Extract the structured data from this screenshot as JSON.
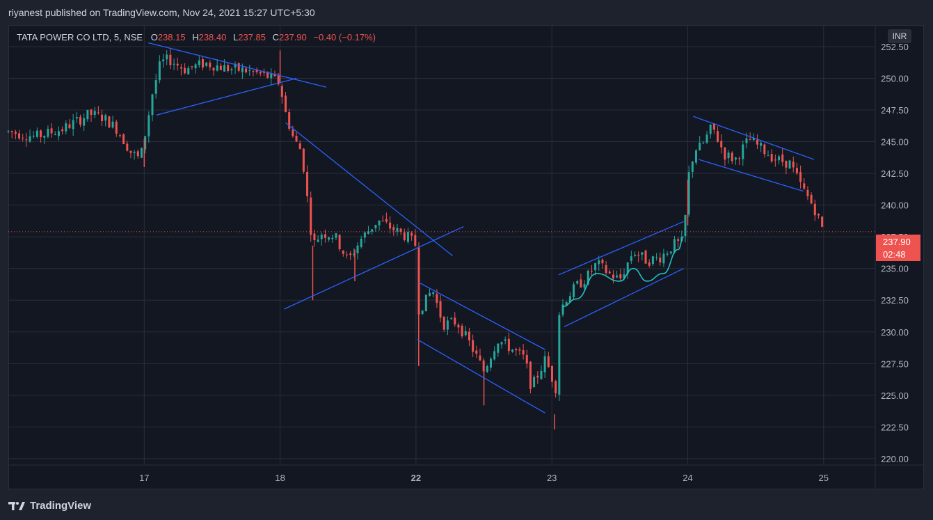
{
  "header": {
    "publisher_line": "riyanest published on TradingView.com, Nov 24, 2021 15:27 UTC+5:30"
  },
  "symbol": {
    "name": "TATA POWER CO LTD, 5, NSE",
    "o_label": "O",
    "o_value": "238.15",
    "h_label": "H",
    "h_value": "238.40",
    "l_label": "L",
    "l_value": "237.85",
    "c_label": "C",
    "c_value": "237.90",
    "change": "−0.40 (−0.17%)"
  },
  "price_scale": {
    "currency": "INR"
  },
  "last_price": {
    "value": "237.90",
    "countdown": "02:48"
  },
  "footer": {
    "brand": "TradingView"
  },
  "colors": {
    "background": "#131722",
    "up": "#26a69a",
    "down": "#ef5350",
    "trendline": "#2962ff",
    "curve": "#22c1c3",
    "grid": "#2a2e39",
    "text": "#b2b5be"
  },
  "chart_data": {
    "type": "candlestick",
    "title": "TATA POWER CO LTD, 5, NSE",
    "x_tick_labels": [
      "17",
      "18",
      "22",
      "23",
      "24",
      "25"
    ],
    "y_ticks": [
      220.0,
      222.5,
      225.0,
      227.5,
      230.0,
      232.5,
      235.0,
      237.5,
      240.0,
      242.5,
      245.0,
      247.5,
      250.0,
      252.5
    ],
    "ylim": [
      219.5,
      254.2
    ],
    "last_price": 237.9,
    "grid": true,
    "close_path": [
      [
        16.0,
        245.8
      ],
      [
        16.2,
        245.4
      ],
      [
        16.4,
        246.0
      ],
      [
        16.6,
        247.2
      ],
      [
        16.7,
        246.9
      ],
      [
        16.8,
        246.0
      ],
      [
        16.9,
        244.2
      ],
      [
        16.97,
        243.6
      ],
      [
        17.0,
        245.2
      ],
      [
        17.06,
        248.8
      ],
      [
        17.12,
        251.2
      ],
      [
        17.18,
        251.5
      ],
      [
        17.3,
        250.7
      ],
      [
        17.45,
        251.2
      ],
      [
        17.6,
        250.8
      ],
      [
        17.75,
        250.6
      ],
      [
        17.9,
        250.2
      ],
      [
        18.0,
        249.6
      ],
      [
        18.03,
        247.6
      ],
      [
        18.1,
        245.2
      ],
      [
        18.16,
        244.2
      ],
      [
        18.2,
        240.5
      ],
      [
        18.24,
        236.8
      ],
      [
        18.3,
        237.8
      ],
      [
        18.4,
        237.6
      ],
      [
        18.5,
        235.6
      ],
      [
        18.6,
        237.4
      ],
      [
        18.72,
        238.8
      ],
      [
        18.85,
        238.0
      ],
      [
        18.95,
        237.4
      ],
      [
        19.0,
        236.8
      ],
      [
        19.02,
        231.8
      ],
      [
        19.07,
        232.4
      ],
      [
        19.12,
        233.4
      ],
      [
        19.2,
        230.6
      ],
      [
        19.3,
        230.8
      ],
      [
        19.4,
        229.0
      ],
      [
        19.5,
        226.9
      ],
      [
        19.6,
        229.4
      ],
      [
        19.7,
        228.7
      ],
      [
        19.8,
        227.9
      ],
      [
        19.85,
        225.6
      ],
      [
        19.95,
        227.8
      ],
      [
        20.0,
        226.6
      ],
      [
        20.02,
        223.5
      ],
      [
        20.05,
        231.4
      ],
      [
        20.1,
        232.6
      ],
      [
        20.18,
        233.6
      ],
      [
        20.25,
        234.2
      ],
      [
        20.33,
        235.4
      ],
      [
        20.42,
        234.6
      ],
      [
        20.5,
        234.1
      ],
      [
        20.6,
        236.4
      ],
      [
        20.7,
        235.6
      ],
      [
        20.8,
        235.9
      ],
      [
        20.9,
        236.9
      ],
      [
        20.97,
        237.1
      ],
      [
        21.0,
        242.0
      ],
      [
        21.05,
        244.4
      ],
      [
        21.1,
        244.6
      ],
      [
        21.18,
        246.2
      ],
      [
        21.27,
        244.0
      ],
      [
        21.35,
        243.6
      ],
      [
        21.45,
        245.2
      ],
      [
        21.55,
        244.4
      ],
      [
        21.65,
        243.6
      ],
      [
        21.75,
        243.3
      ],
      [
        21.85,
        241.2
      ],
      [
        21.93,
        239.8
      ],
      [
        22.0,
        237.9
      ]
    ],
    "volatility_spikes": [
      {
        "x": 17.0,
        "low": 243.0
      },
      {
        "x": 18.0,
        "high": 252.2
      },
      {
        "x": 18.24,
        "low": 232.5
      },
      {
        "x": 18.55,
        "low": 234.0
      },
      {
        "x": 19.02,
        "low": 227.3
      },
      {
        "x": 19.5,
        "low": 224.2
      },
      {
        "x": 20.02,
        "low": 222.3
      },
      {
        "x": 21.0,
        "low": 238.4
      }
    ],
    "trendlines": [
      {
        "points": [
          [
            17.03,
            252.8
          ],
          [
            18.34,
            249.3
          ]
        ]
      },
      {
        "points": [
          [
            17.09,
            247.1
          ],
          [
            18.12,
            250.0
          ]
        ]
      },
      {
        "points": [
          [
            18.04,
            246.5
          ],
          [
            19.27,
            236.0
          ]
        ]
      },
      {
        "points": [
          [
            18.03,
            231.8
          ],
          [
            19.35,
            238.3
          ]
        ]
      },
      {
        "points": [
          [
            19.02,
            233.9
          ],
          [
            19.95,
            228.6
          ]
        ]
      },
      {
        "points": [
          [
            19.01,
            229.4
          ],
          [
            19.95,
            223.6
          ]
        ]
      },
      {
        "points": [
          [
            20.05,
            234.5
          ],
          [
            20.97,
            238.7
          ]
        ]
      },
      {
        "points": [
          [
            20.09,
            230.4
          ],
          [
            20.97,
            235.0
          ]
        ]
      },
      {
        "points": [
          [
            21.04,
            247.0
          ],
          [
            21.93,
            243.6
          ]
        ]
      },
      {
        "points": [
          [
            21.08,
            243.6
          ],
          [
            21.85,
            241.1
          ]
        ]
      }
    ],
    "curve": {
      "points": [
        [
          20.08,
          232.0
        ],
        [
          20.18,
          232.6
        ],
        [
          20.33,
          234.6
        ],
        [
          20.5,
          234.0
        ],
        [
          20.6,
          235.0
        ],
        [
          20.7,
          234.0
        ],
        [
          20.82,
          234.6
        ],
        [
          20.93,
          236.5
        ],
        [
          20.97,
          237.5
        ]
      ]
    }
  }
}
